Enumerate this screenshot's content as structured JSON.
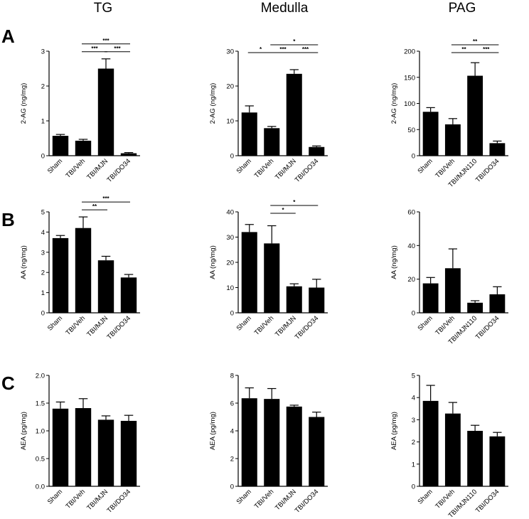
{
  "column_titles": [
    "TG",
    "Medulla",
    "PAG"
  ],
  "row_labels": [
    "A",
    "B",
    "C"
  ],
  "chart_data": [
    {
      "type": "bar",
      "row": 0,
      "col": 0,
      "ylabel": "2-AG (ng/mg)",
      "ylim": [
        0,
        3
      ],
      "yticks": [
        0,
        1,
        2,
        3
      ],
      "categories": [
        "Sham",
        "TBI/Veh",
        "TBI/MJN",
        "TBI/DO34"
      ],
      "values": [
        0.57,
        0.43,
        2.5,
        0.07
      ],
      "errors": [
        0.04,
        0.04,
        0.28,
        0.02
      ],
      "comparisons": [
        {
          "from": 1,
          "to": 2,
          "label": "***"
        },
        {
          "from": 2,
          "to": 3,
          "label": "***"
        },
        {
          "from": 1,
          "to": 3,
          "label": "***"
        }
      ]
    },
    {
      "type": "bar",
      "row": 0,
      "col": 1,
      "ylabel": "2-AG (ng/mg)",
      "ylim": [
        0,
        30
      ],
      "yticks": [
        0,
        10,
        20,
        30
      ],
      "categories": [
        "Sham",
        "TBI/Veh",
        "TBI/MJN",
        "TBI/DO34"
      ],
      "values": [
        12.4,
        7.9,
        23.5,
        2.5
      ],
      "errors": [
        1.9,
        0.5,
        1.2,
        0.3
      ],
      "comparisons": [
        {
          "from": 0,
          "to": 1,
          "label": "*"
        },
        {
          "from": 1,
          "to": 2,
          "label": "***"
        },
        {
          "from": 2,
          "to": 3,
          "label": "***"
        },
        {
          "from": 1,
          "to": 3,
          "label": "*"
        }
      ]
    },
    {
      "type": "bar",
      "row": 0,
      "col": 2,
      "ylabel": "2-AG (ng/mg)",
      "ylim": [
        0,
        200
      ],
      "yticks": [
        0,
        50,
        100,
        150,
        200
      ],
      "categories": [
        "Sham",
        "TBI/Veh",
        "TBI/MJN110",
        "TBI/DO34"
      ],
      "values": [
        84,
        60,
        153,
        24
      ],
      "errors": [
        8,
        11,
        25,
        4
      ],
      "comparisons": [
        {
          "from": 1,
          "to": 2,
          "label": "**"
        },
        {
          "from": 2,
          "to": 3,
          "label": "***"
        },
        {
          "from": 1,
          "to": 3,
          "label": "**"
        }
      ]
    },
    {
      "type": "bar",
      "row": 1,
      "col": 0,
      "ylabel": "AA (ng/mg)",
      "ylim": [
        0,
        5
      ],
      "yticks": [
        0,
        1,
        2,
        3,
        4,
        5
      ],
      "categories": [
        "Sham",
        "TBI/Veh",
        "TBI/MJN",
        "TBI/DO34"
      ],
      "values": [
        3.7,
        4.2,
        2.6,
        1.75
      ],
      "errors": [
        0.13,
        0.55,
        0.2,
        0.15
      ],
      "comparisons": [
        {
          "from": 1,
          "to": 2,
          "label": "**"
        },
        {
          "from": 1,
          "to": 3,
          "label": "***"
        }
      ]
    },
    {
      "type": "bar",
      "row": 1,
      "col": 1,
      "ylabel": "AA (ng/mg)",
      "ylim": [
        0,
        40
      ],
      "yticks": [
        0,
        10,
        20,
        30,
        40
      ],
      "categories": [
        "Sham",
        "TBI/Veh",
        "TBI/MJN",
        "TBI/DO34"
      ],
      "values": [
        32,
        27.5,
        10.5,
        10
      ],
      "errors": [
        3,
        7,
        1,
        3.3
      ],
      "comparisons": [
        {
          "from": 1,
          "to": 2,
          "label": "*"
        },
        {
          "from": 1,
          "to": 3,
          "label": "*"
        }
      ]
    },
    {
      "type": "bar",
      "row": 1,
      "col": 2,
      "ylabel": "AA (ng/mg)",
      "ylim": [
        0,
        60
      ],
      "yticks": [
        0,
        20,
        40,
        60
      ],
      "categories": [
        "Sham",
        "TBI/Veh",
        "TBI/MJN110",
        "TBI/DO34"
      ],
      "values": [
        17.5,
        26.5,
        6,
        11
      ],
      "errors": [
        3.5,
        11.5,
        1.2,
        4.5
      ],
      "comparisons": []
    },
    {
      "type": "bar",
      "row": 2,
      "col": 0,
      "ylabel": "AEA (pg/mg)",
      "ylim": [
        0,
        2
      ],
      "yticks": [
        "0.0",
        "0.5",
        "1.0",
        "1.5",
        "2.0"
      ],
      "categories": [
        "Sham",
        "TBI/Veh",
        "TBI/MJN",
        "TBI/DO34"
      ],
      "values": [
        1.4,
        1.41,
        1.2,
        1.18
      ],
      "errors": [
        0.12,
        0.17,
        0.07,
        0.1
      ],
      "comparisons": []
    },
    {
      "type": "bar",
      "row": 2,
      "col": 1,
      "ylabel": "AEA (pg/mg)",
      "ylim": [
        0,
        8
      ],
      "yticks": [
        0,
        2,
        4,
        6,
        8
      ],
      "categories": [
        "Sham",
        "TBI/Veh",
        "TBI/MJN",
        "TBI/DO34"
      ],
      "values": [
        6.35,
        6.3,
        5.75,
        5.0
      ],
      "errors": [
        0.75,
        0.75,
        0.1,
        0.35
      ],
      "comparisons": []
    },
    {
      "type": "bar",
      "row": 2,
      "col": 2,
      "ylabel": "AEA (pg/mg)",
      "ylim": [
        0,
        5
      ],
      "yticks": [
        0,
        1,
        2,
        3,
        4,
        5
      ],
      "categories": [
        "Sham",
        "TBI/Veh",
        "TBI/MJN110",
        "TBI/DO34"
      ],
      "values": [
        3.85,
        3.28,
        2.5,
        2.25
      ],
      "errors": [
        0.7,
        0.5,
        0.25,
        0.18
      ],
      "comparisons": []
    }
  ]
}
